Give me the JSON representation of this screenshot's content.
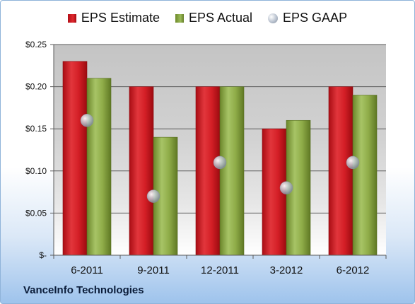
{
  "legend": {
    "estimate": "EPS Estimate",
    "actual": "EPS Actual",
    "gaap": "EPS GAAP"
  },
  "company": "VanceInfo Technologies",
  "colors": {
    "estimate": "#d61e25",
    "actual": "#8fac48",
    "gaap": "#b4bcc8",
    "plot_bg_top": "#c8c8c8",
    "plot_bg_bottom": "#ffffff"
  },
  "chart_data": {
    "type": "bar",
    "categories": [
      "6-2011",
      "9-2011",
      "12-2011",
      "3-2012",
      "6-2012"
    ],
    "series": [
      {
        "name": "EPS Estimate",
        "values": [
          0.23,
          0.2,
          0.2,
          0.15,
          0.2
        ]
      },
      {
        "name": "EPS Actual",
        "values": [
          0.21,
          0.14,
          0.2,
          0.16,
          0.19
        ]
      },
      {
        "name": "EPS GAAP",
        "values": [
          0.16,
          0.07,
          0.11,
          0.08,
          0.11
        ]
      }
    ],
    "ylim": [
      0,
      0.25
    ],
    "yticks": [
      0,
      0.05,
      0.1,
      0.15,
      0.2,
      0.25
    ],
    "ytick_labels": [
      "$-",
      "$0.05",
      "$0.10",
      "$0.15",
      "$0.20",
      "$0.25"
    ],
    "grid": true,
    "legend_position": "top"
  }
}
